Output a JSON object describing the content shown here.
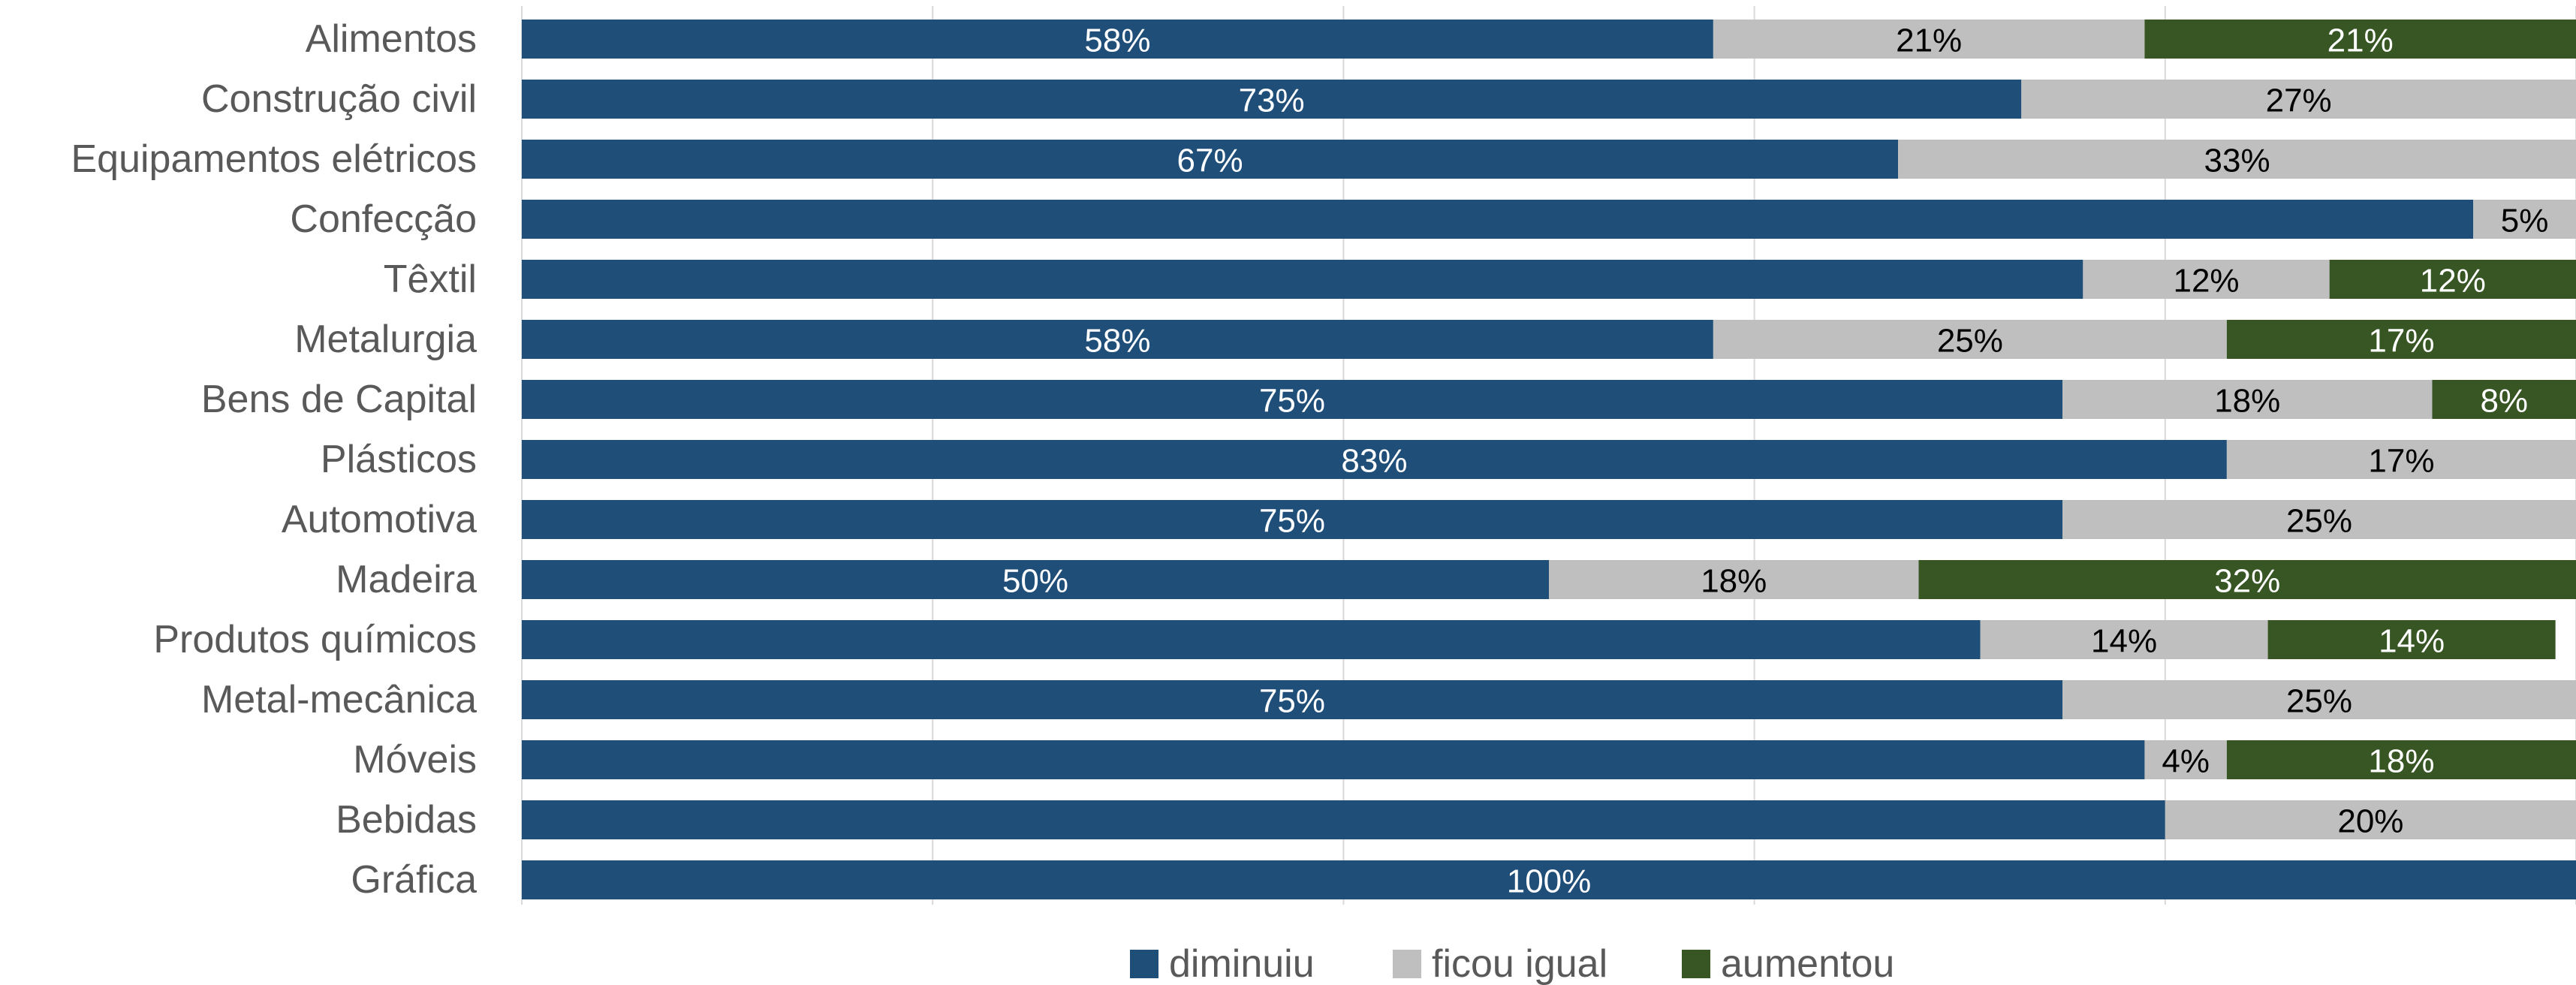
{
  "chart_data": {
    "type": "bar",
    "orientation": "horizontal",
    "stacked": true,
    "percent_stacked": true,
    "categories": [
      "Alimentos",
      "Construção civil",
      "Equipamentos elétricos",
      "Confecção",
      "Têxtil",
      "Metalurgia",
      "Bens de Capital",
      "Plásticos",
      "Automotiva",
      "Madeira",
      "Produtos químicos",
      "Metal-mecânica",
      "Móveis",
      "Bebidas",
      "Gráfica"
    ],
    "series": [
      {
        "name": "diminuiu",
        "color": "#1F4E79",
        "label_color": "#FFFFFF",
        "values": [
          58,
          73,
          67,
          95,
          76,
          58,
          75,
          83,
          75,
          50,
          71,
          75,
          79,
          80,
          100
        ],
        "data_labels": [
          "58%",
          "73%",
          "67%",
          "",
          "",
          "58%",
          "75%",
          "83%",
          "75%",
          "50%",
          "",
          "75%",
          "",
          "",
          "100%"
        ]
      },
      {
        "name": "ficou igual",
        "color": "#BFBFBF",
        "label_color": "#000000",
        "values": [
          21,
          27,
          33,
          5,
          12,
          25,
          18,
          17,
          25,
          18,
          14,
          25,
          4,
          20,
          0
        ],
        "data_labels": [
          "21%",
          "27%",
          "33%",
          "5%",
          "12%",
          "25%",
          "18%",
          "17%",
          "25%",
          "18%",
          "14%",
          "25%",
          "4%",
          "20%",
          ""
        ]
      },
      {
        "name": "aumentou",
        "color": "#375623",
        "label_color": "#FFFFFF",
        "values": [
          21,
          0,
          0,
          0,
          12,
          17,
          8,
          0,
          0,
          32,
          14,
          0,
          18,
          0,
          0
        ],
        "data_labels": [
          "21%",
          "",
          "",
          "",
          "12%",
          "17%",
          "8%",
          "",
          "",
          "32%",
          "14%",
          "",
          "18%",
          "",
          ""
        ]
      }
    ],
    "xlim": [
      0,
      100
    ],
    "grid": true,
    "legend_position": "bottom"
  }
}
